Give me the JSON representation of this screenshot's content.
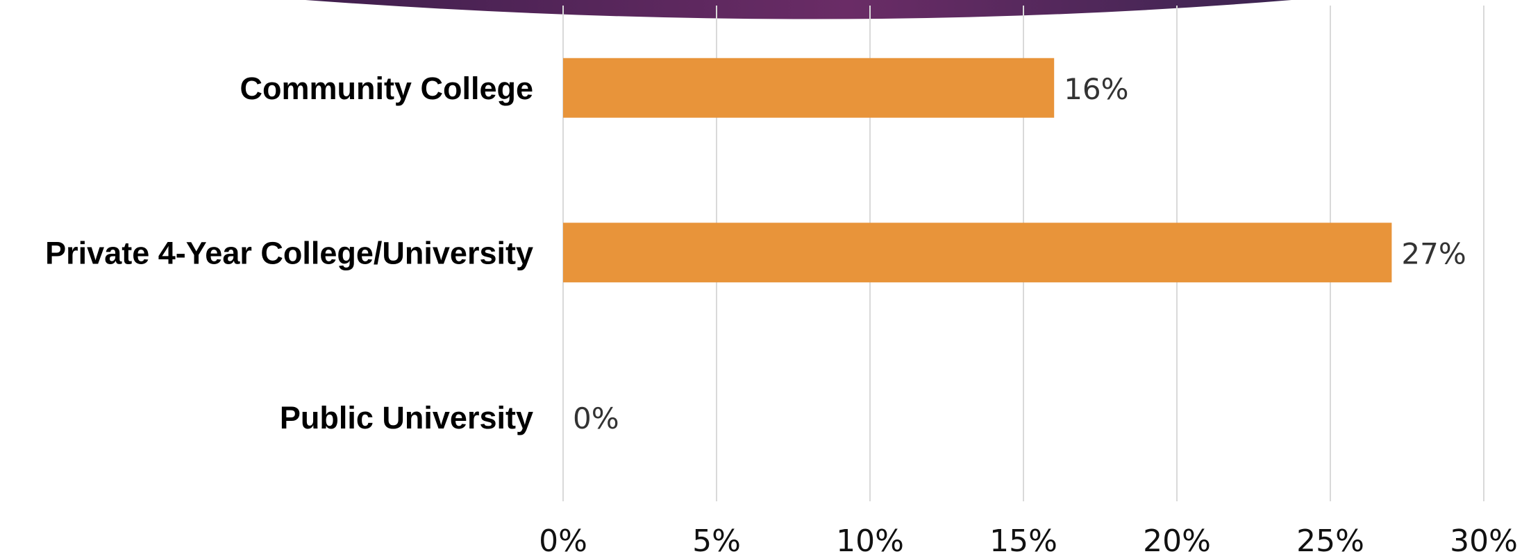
{
  "chart_data": {
    "type": "bar",
    "orientation": "horizontal",
    "categories": [
      "Community College",
      "Private 4-Year College/University",
      "Public University"
    ],
    "values": [
      16,
      27,
      0
    ],
    "data_labels": [
      "16%",
      "27%",
      "0%"
    ],
    "xlim": [
      0,
      30
    ],
    "x_ticks": [
      0,
      5,
      10,
      15,
      20,
      25,
      30
    ],
    "x_tick_labels": [
      "0%",
      "5%",
      "10%",
      "15%",
      "20%",
      "25%",
      "30%"
    ],
    "title": "",
    "xlabel": "",
    "ylabel": "",
    "grid": "vertical",
    "legend": "none",
    "colors": {
      "bar": "#E8943A",
      "grid": "#D9D9D9",
      "banner": "#5E2A5E"
    }
  }
}
